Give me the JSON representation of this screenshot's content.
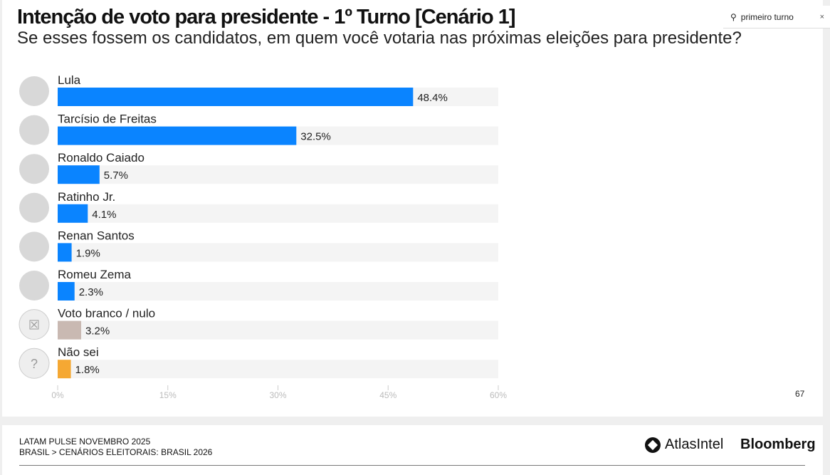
{
  "search": {
    "value": "primeiro turno",
    "icon": "search-icon",
    "clear": "×"
  },
  "page_number": "67",
  "footer": {
    "line1": "LATAM PULSE NOVEMBRO 2025",
    "line2": "BRASIL > CENÁRIOS ELEITORAIS: BRASIL 2026",
    "brand1": "AtlasIntel",
    "brand2": "Bloomberg"
  },
  "chart_data": {
    "type": "bar",
    "orientation": "horizontal",
    "title": "Intenção de voto para presidente - 1º Turno [Cenário 1]",
    "subtitle": "Se esses fossem os candidatos, em quem você votaria nas próximas eleições para presidente?",
    "categories": [
      "Lula",
      "Tarcísio de Freitas",
      "Ronaldo Caiado",
      "Ratinho Jr.",
      "Renan Santos",
      "Romeu Zema",
      "Voto branco / nulo",
      "Não sei"
    ],
    "values": [
      48.4,
      32.5,
      5.7,
      4.1,
      1.9,
      2.3,
      3.2,
      1.8
    ],
    "labels": [
      "48.4%",
      "32.5%",
      "5.7%",
      "4.1%",
      "1.9%",
      "2.3%",
      "3.2%",
      "1.8%"
    ],
    "colors": [
      "#0a84ff",
      "#0a84ff",
      "#0a84ff",
      "#0a84ff",
      "#0a84ff",
      "#0a84ff",
      "#c9b9b2",
      "#f5a833"
    ],
    "xlim": [
      0,
      60
    ],
    "xticks": [
      "0%",
      "15%",
      "30%",
      "45%",
      "60%"
    ],
    "xtick_values": [
      0,
      15,
      30,
      45,
      60
    ],
    "grid": false
  }
}
